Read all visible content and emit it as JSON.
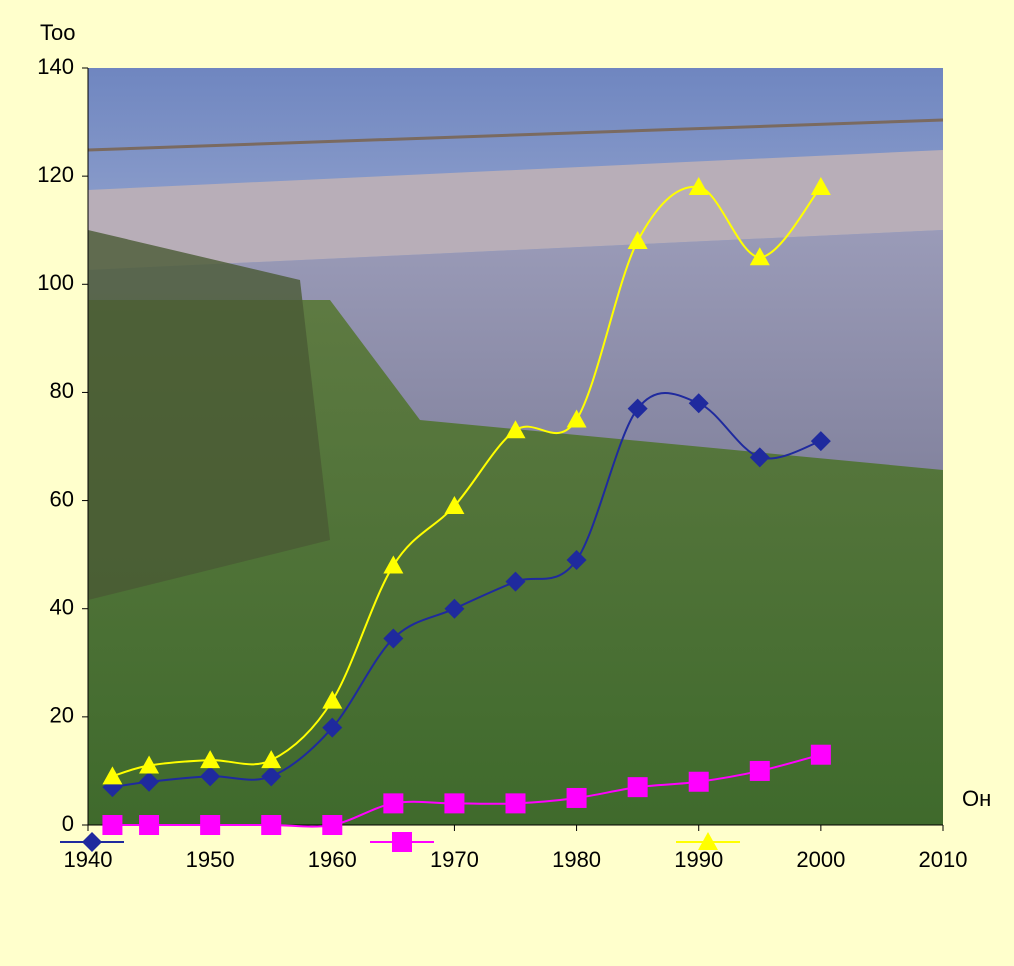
{
  "chart_data": {
    "type": "line",
    "y_label": "Too",
    "x_label": "Он",
    "x": [
      1942,
      1945,
      1950,
      1955,
      1960,
      1965,
      1970,
      1975,
      1980,
      1985,
      1990,
      1995,
      2000
    ],
    "series": [
      {
        "color": "#1f2a9e",
        "marker": "diamond",
        "values": [
          7,
          8,
          9,
          9,
          18,
          34.5,
          40,
          45,
          49,
          77,
          78,
          68,
          71
        ]
      },
      {
        "color": "#ff00ff",
        "marker": "square",
        "values": [
          0,
          0,
          0,
          0,
          0,
          4,
          4,
          4,
          5,
          7,
          8,
          10,
          13
        ]
      },
      {
        "color": "#ffff00",
        "marker": "triangle",
        "values": [
          9,
          11,
          12,
          12,
          23,
          48,
          59,
          73,
          75,
          108,
          118,
          105,
          118
        ]
      }
    ],
    "xlim": [
      1940,
      2010
    ],
    "xticks": [
      1940,
      1950,
      1960,
      1970,
      1980,
      1990,
      2000,
      2010
    ],
    "ylim": [
      0,
      140
    ],
    "yticks": [
      0,
      20,
      40,
      60,
      80,
      100,
      120,
      140
    ]
  }
}
